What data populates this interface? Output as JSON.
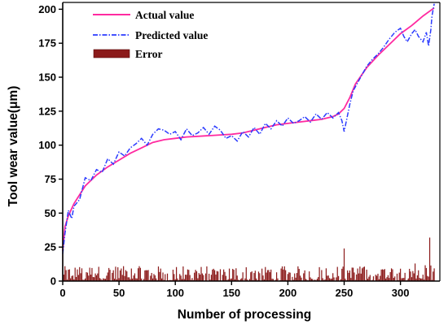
{
  "chart_data": {
    "type": "line",
    "xlabel": "Number of processing",
    "ylabel": "Tool wear value(μm)",
    "xlim": [
      0,
      335
    ],
    "ylim": [
      0,
      205
    ],
    "xticks": [
      0,
      50,
      100,
      150,
      200,
      250,
      300
    ],
    "yticks": [
      0,
      25,
      50,
      75,
      100,
      125,
      150,
      175,
      200
    ],
    "grid": false,
    "legend_position": "top-left",
    "series": [
      {
        "name": "Actual value",
        "style": "solid",
        "color": "#ff2aa0",
        "x": [
          0,
          2,
          5,
          10,
          20,
          30,
          40,
          50,
          60,
          70,
          80,
          90,
          100,
          110,
          120,
          130,
          140,
          150,
          160,
          170,
          180,
          190,
          200,
          210,
          220,
          230,
          240,
          245,
          250,
          255,
          260,
          270,
          280,
          290,
          300,
          310,
          320,
          330
        ],
        "values": [
          22,
          40,
          48,
          57,
          70,
          78,
          84,
          89,
          94,
          98,
          102,
          104,
          105,
          106,
          106.5,
          107,
          107.5,
          108,
          109,
          111,
          113,
          115,
          116,
          117,
          118,
          119,
          121,
          123,
          127,
          135,
          145,
          157,
          166,
          174,
          182,
          188,
          195,
          201
        ]
      },
      {
        "name": "Predicted value",
        "style": "dash-dot",
        "color": "#2b3bff",
        "x": [
          0,
          2,
          5,
          8,
          10,
          15,
          20,
          25,
          30,
          35,
          40,
          45,
          50,
          55,
          60,
          65,
          70,
          75,
          80,
          85,
          90,
          95,
          100,
          105,
          110,
          115,
          120,
          125,
          130,
          135,
          140,
          145,
          150,
          155,
          160,
          165,
          170,
          175,
          180,
          185,
          190,
          195,
          200,
          205,
          210,
          215,
          220,
          225,
          230,
          235,
          240,
          245,
          248,
          250,
          252,
          255,
          258,
          262,
          266,
          270,
          275,
          280,
          285,
          290,
          295,
          300,
          303,
          306,
          310,
          313,
          316,
          320,
          323,
          325,
          327,
          328,
          330
        ],
        "values": [
          20,
          35,
          52,
          46,
          55,
          60,
          76,
          74,
          82,
          80,
          90,
          86,
          95,
          92,
          98,
          101,
          105,
          100,
          108,
          112,
          111,
          108,
          110,
          104,
          112,
          107,
          109,
          113,
          108,
          114,
          111,
          105,
          107,
          103,
          110,
          106,
          113,
          108,
          116,
          112,
          118,
          114,
          120,
          116,
          118,
          121,
          117,
          123,
          119,
          124,
          120,
          124,
          118,
          110,
          118,
          130,
          140,
          146,
          152,
          158,
          163,
          167,
          172,
          178,
          183,
          186,
          180,
          176,
          182,
          185,
          180,
          176,
          183,
          173,
          185,
          195,
          204
        ]
      },
      {
        "name": "Error",
        "style": "bar",
        "color": "#8b1a1a",
        "x": [
          0,
          250,
          326
        ],
        "values": [
          20,
          24,
          32
        ]
      }
    ]
  }
}
